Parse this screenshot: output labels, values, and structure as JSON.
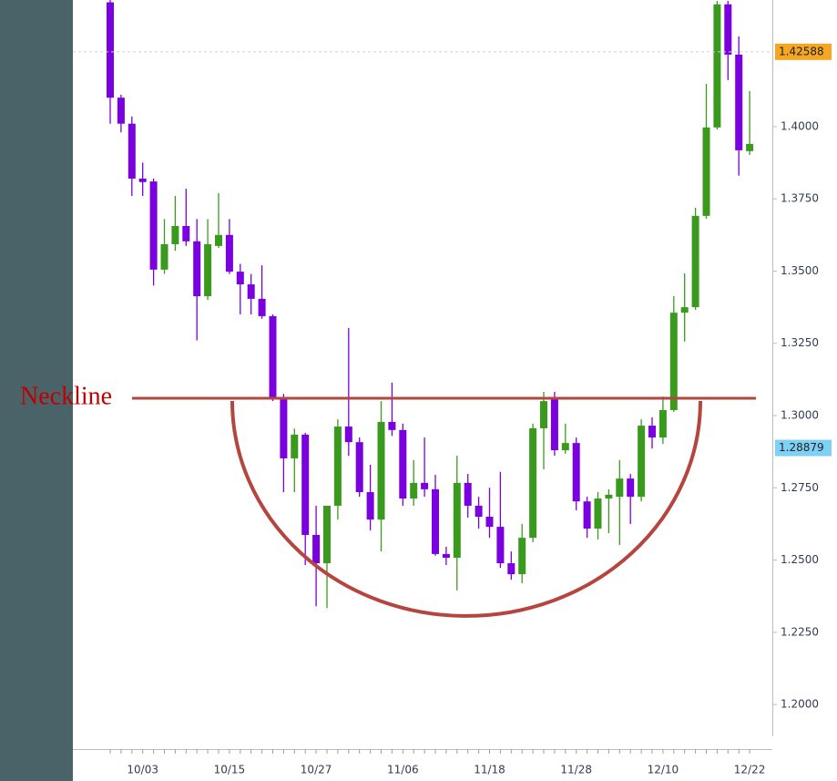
{
  "chart_data": {
    "type": "candlestick",
    "annotation": "Neckline",
    "up_color": "#3a9a1e",
    "down_color": "#7b00e0",
    "categories": [
      null,
      null,
      null,
      "10/03",
      null,
      null,
      null,
      null,
      null,
      null,
      null,
      "10/15",
      null,
      null,
      null,
      null,
      null,
      null,
      null,
      "10/27",
      null,
      null,
      null,
      null,
      null,
      null,
      null,
      "11/06",
      null,
      null,
      null,
      null,
      null,
      null,
      null,
      "11/18",
      null,
      null,
      null,
      null,
      null,
      null,
      null,
      "11/28",
      null,
      null,
      null,
      null,
      null,
      null,
      null,
      "12/10",
      null,
      null,
      null,
      null,
      null,
      null,
      null,
      "12/22"
    ],
    "open": [
      1.443,
      1.41,
      1.401,
      1.382,
      1.381,
      1.3505,
      1.3593,
      1.3656,
      1.3603,
      1.3413,
      1.3587,
      1.3625,
      1.3498,
      1.3454,
      1.3404,
      1.3344,
      1.306,
      1.2852,
      1.2934,
      1.2587,
      1.2489,
      1.2688,
      1.2962,
      1.2908,
      1.2735,
      1.264,
      1.2978,
      1.295,
      1.2713,
      1.2767,
      1.2745,
      1.2521,
      1.2508,
      1.2767,
      1.2688,
      1.265,
      1.2615,
      1.2489,
      1.2451,
      1.2577,
      1.2956,
      1.306,
      1.288,
      1.2905,
      1.2703,
      1.2609,
      1.2713,
      1.2719,
      1.2782,
      1.2719,
      1.2965,
      1.2924,
      1.3019,
      1.3356,
      1.3375,
      1.3691,
      1.3997,
      1.4423,
      1.4249,
      1.3915
    ],
    "high": [
      1.444,
      1.411,
      1.4035,
      1.3875,
      1.382,
      1.368,
      1.376,
      1.3785,
      1.368,
      1.368,
      1.377,
      1.368,
      1.3525,
      1.349,
      1.352,
      1.335,
      1.3075,
      1.2955,
      1.294,
      1.2688,
      1.2688,
      1.2987,
      1.3303,
      1.2924,
      1.283,
      1.305,
      1.3114,
      1.2972,
      1.2846,
      1.2924,
      1.2795,
      1.2546,
      1.2861,
      1.2798,
      1.2719,
      1.275,
      1.2805,
      1.253,
      1.2625,
      1.2972,
      1.3082,
      1.3082,
      1.2972,
      1.2924,
      1.2719,
      1.2735,
      1.2745,
      1.2846,
      1.2798,
      1.2987,
      1.2994,
      1.3066,
      1.3413,
      1.3492,
      1.3719,
      1.4148,
      1.4435,
      1.4435,
      1.4312,
      1.4123
    ],
    "low": [
      1.401,
      1.398,
      1.376,
      1.376,
      1.345,
      1.349,
      1.357,
      1.3587,
      1.326,
      1.34,
      1.358,
      1.349,
      1.335,
      1.335,
      1.3335,
      1.305,
      1.2735,
      1.2735,
      1.2483,
      1.234,
      1.2334,
      1.264,
      1.2861,
      1.2719,
      1.2603,
      1.253,
      1.293,
      1.2688,
      1.2688,
      1.2719,
      1.2515,
      1.2483,
      1.2395,
      1.2647,
      1.2609,
      1.2577,
      1.2473,
      1.2432,
      1.242,
      1.2562,
      1.2814,
      1.2861,
      1.2868,
      1.2672,
      1.2577,
      1.2571,
      1.2593,
      1.2552,
      1.2625,
      1.2703,
      1.2886,
      1.2902,
      1.3013,
      1.3256,
      1.3366,
      1.3681,
      1.399,
      1.4161,
      1.383,
      1.3902
    ],
    "close": [
      1.41,
      1.401,
      1.382,
      1.3808,
      1.3505,
      1.3593,
      1.3656,
      1.3603,
      1.3413,
      1.3593,
      1.3625,
      1.3498,
      1.3454,
      1.3404,
      1.3344,
      1.306,
      1.2852,
      1.2934,
      1.2587,
      1.2489,
      1.2688,
      1.2962,
      1.2908,
      1.2735,
      1.264,
      1.2978,
      1.295,
      1.2713,
      1.2767,
      1.2745,
      1.2521,
      1.2508,
      1.2767,
      1.2688,
      1.265,
      1.2615,
      1.2489,
      1.2451,
      1.2577,
      1.2956,
      1.305,
      1.288,
      1.2905,
      1.2703,
      1.2609,
      1.2713,
      1.2726,
      1.2782,
      1.2719,
      1.2965,
      1.2924,
      1.3019,
      1.3356,
      1.3375,
      1.3691,
      1.3997,
      1.4423,
      1.4249,
      1.3918,
      1.394
    ],
    "price_markers": [
      {
        "value": 1.42588,
        "color": "#f5a623"
      },
      {
        "value": 1.28879,
        "color": "#7fd0f5"
      }
    ],
    "ylim": [
      1.189,
      1.4438
    ],
    "yticks": [
      {
        "value": 1.2,
        "label": "1.2000"
      },
      {
        "value": 1.225,
        "label": "1.2250"
      },
      {
        "value": 1.25,
        "label": "1.2500"
      },
      {
        "value": 1.275,
        "label": "1.2750"
      },
      {
        "value": 1.3,
        "label": "1.3000"
      },
      {
        "value": 1.325,
        "label": "1.3250"
      },
      {
        "value": 1.35,
        "label": "1.3500"
      },
      {
        "value": 1.375,
        "label": "1.3750"
      },
      {
        "value": 1.4,
        "label": "1.4000"
      }
    ]
  }
}
